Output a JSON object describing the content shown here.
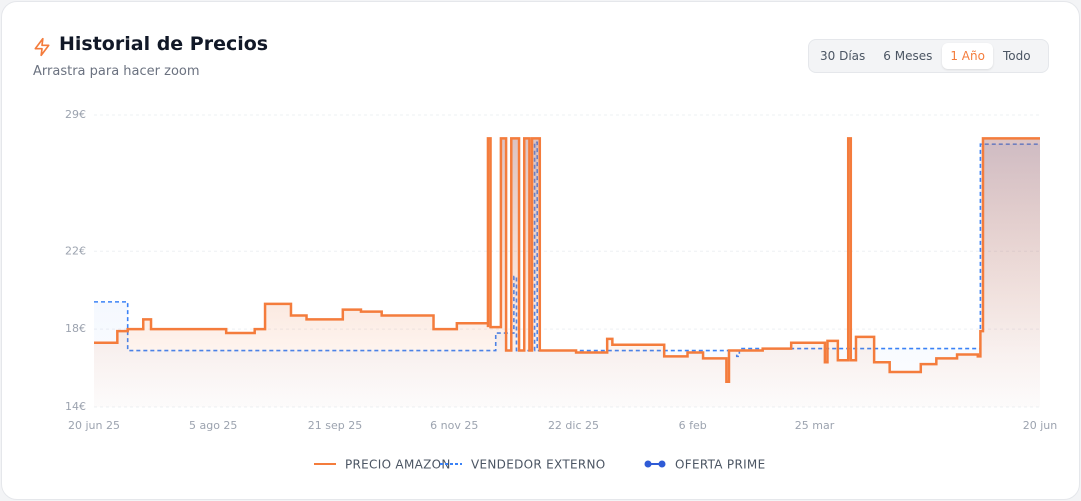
{
  "chart_data": {
    "type": "line",
    "title": "Historial de Precios",
    "subtitle": "Arrastra para hacer zoom",
    "xlim": [
      0,
      365
    ],
    "xticks": [
      {
        "value": 0,
        "label": "20 jun 25"
      },
      {
        "value": 46,
        "label": "5 ago 25"
      },
      {
        "value": 93,
        "label": "21 sep 25"
      },
      {
        "value": 139,
        "label": "6 nov 25"
      },
      {
        "value": 185,
        "label": "22 dic 25"
      },
      {
        "value": 231,
        "label": "6 feb"
      },
      {
        "value": 278,
        "label": "25 mar"
      },
      {
        "value": 365,
        "label": "20 jun"
      }
    ],
    "ylim": [
      14,
      29
    ],
    "yticks": [
      {
        "value": 14,
        "label": "14€"
      },
      {
        "value": 18,
        "label": "18€"
      },
      {
        "value": 22,
        "label": "22€"
      },
      {
        "value": 29,
        "label": "29€"
      }
    ],
    "grid": true,
    "series": [
      {
        "name": "PRECIO AMAZON",
        "color": "#f47c3c",
        "style": "solid",
        "x": [
          0,
          9,
          9,
          13,
          13,
          19,
          19,
          22,
          22,
          51,
          51,
          62,
          62,
          66,
          66,
          76,
          76,
          82,
          82,
          96,
          96,
          103,
          103,
          111,
          111,
          131,
          131,
          140,
          140,
          152,
          152,
          152,
          153,
          153,
          157,
          157,
          159,
          159,
          161,
          161,
          164,
          164,
          166,
          166,
          168,
          168,
          169,
          169,
          172,
          172,
          186,
          186,
          198,
          198,
          200,
          200,
          220,
          220,
          229,
          229,
          235,
          235,
          244,
          244,
          245,
          245,
          258,
          258,
          269,
          269,
          282,
          282,
          283,
          283,
          287,
          287,
          291,
          291,
          292,
          292,
          294,
          294,
          301,
          301,
          307,
          307,
          319,
          319,
          325,
          325,
          333,
          333,
          341,
          341,
          342,
          342,
          343,
          343,
          365
        ],
        "values": [
          17.3,
          17.3,
          17.9,
          17.9,
          18.0,
          18.0,
          18.5,
          18.5,
          18.0,
          18.0,
          17.8,
          17.8,
          18.0,
          18.0,
          19.3,
          19.3,
          18.7,
          18.7,
          18.5,
          18.5,
          19.0,
          19.0,
          18.9,
          18.9,
          18.7,
          18.7,
          18.0,
          18.0,
          18.3,
          18.3,
          18.1,
          27.8,
          27.8,
          18.1,
          18.1,
          27.8,
          27.8,
          16.9,
          16.9,
          27.8,
          27.8,
          16.9,
          16.9,
          27.8,
          27.8,
          16.9,
          16.9,
          27.8,
          27.8,
          16.9,
          16.9,
          16.8,
          16.8,
          17.5,
          17.5,
          17.2,
          17.2,
          16.6,
          16.6,
          16.8,
          16.8,
          16.5,
          16.5,
          15.3,
          15.3,
          16.9,
          16.9,
          17.0,
          17.0,
          17.3,
          17.3,
          16.3,
          16.3,
          17.4,
          17.4,
          16.4,
          16.4,
          27.8,
          27.8,
          16.4,
          16.4,
          17.6,
          17.6,
          16.3,
          16.3,
          15.8,
          15.8,
          16.2,
          16.2,
          16.5,
          16.5,
          16.7,
          16.7,
          16.6,
          16.6,
          17.9,
          17.9,
          27.8,
          27.8
        ]
      },
      {
        "name": "VENDEDOR EXTERNO",
        "color": "#3b82f6",
        "style": "dashed",
        "x": [
          0,
          13,
          13,
          155,
          155,
          162,
          162,
          163,
          163,
          170,
          170,
          171,
          171,
          248,
          248,
          249,
          249,
          342,
          342,
          365
        ],
        "values": [
          19.4,
          19.4,
          16.9,
          16.9,
          17.8,
          17.8,
          20.7,
          20.7,
          16.9,
          16.9,
          27.6,
          27.6,
          16.9,
          16.9,
          16.6,
          16.6,
          17.0,
          17.0,
          27.5,
          27.5
        ]
      },
      {
        "name": "OFERTA PRIME",
        "color": "#2f5bd6",
        "style": "dots",
        "x": [],
        "values": []
      }
    ]
  },
  "range_options": [
    "30 Días",
    "6 Meses",
    "1 Año",
    "Todo"
  ],
  "active_range": 2
}
